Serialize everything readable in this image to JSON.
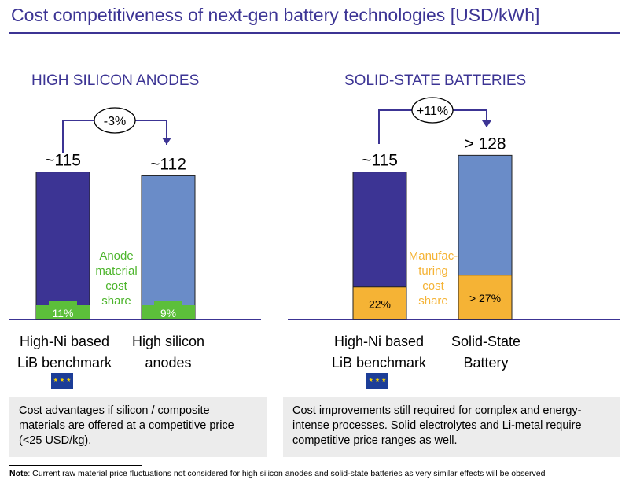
{
  "title": "Cost competitiveness of next-gen battery technologies [USD/kWh]",
  "colors": {
    "title": "#3c3494",
    "benchmark_bar": "#3c3494",
    "nextgen_bar": "#6a8cc8",
    "anode_share": "#5cbf3a",
    "manufacturing_share": "#f5b335",
    "box_bg": "#ececec"
  },
  "chart_data": [
    {
      "type": "bar",
      "title": "HIGH SILICON ANODES",
      "categories": [
        "High-Ni based LiB benchmark",
        "High silicon anodes"
      ],
      "values": [
        115,
        112
      ],
      "value_labels": [
        "~115",
        "~112"
      ],
      "share_values": [
        11,
        9
      ],
      "share_labels": [
        "11%",
        "9%"
      ],
      "share_caption": [
        "Anode",
        "material",
        "cost",
        "share"
      ],
      "change_label": "-3%"
    },
    {
      "type": "bar",
      "title": "SOLID-STATE BATTERIES",
      "categories": [
        "High-Ni based LiB benchmark",
        "Solid-State Battery"
      ],
      "values": [
        115,
        128
      ],
      "value_labels": [
        "~115",
        "> 128"
      ],
      "share_values": [
        22,
        27
      ],
      "share_labels": [
        "22%",
        "> 27%"
      ],
      "share_caption": [
        "Manufac-",
        "turing",
        "cost",
        "share"
      ],
      "change_label": "+11%"
    }
  ],
  "left": {
    "cat1_line1": "High-Ni based",
    "cat1_line2": "LiB benchmark",
    "cat2_line1": "High silicon",
    "cat2_line2": "anodes",
    "box": "Cost advantages if silicon / composite materials are offered at a competitive price (<25 USD/kg)."
  },
  "right": {
    "cat1_line1": "High-Ni based",
    "cat1_line2": "LiB benchmark",
    "cat2_line1": "Solid-State",
    "cat2_line2": "Battery",
    "box": "Cost improvements still required for complex and energy-intense processes. Solid electrolytes and Li-metal require competitive price ranges as well."
  },
  "flag_icon": "eu-flag-icon",
  "note_label": "Note",
  "note_text": ": Current raw material price fluctuations not considered for high silicon anodes and solid-state batteries as very similar effects will be observed"
}
